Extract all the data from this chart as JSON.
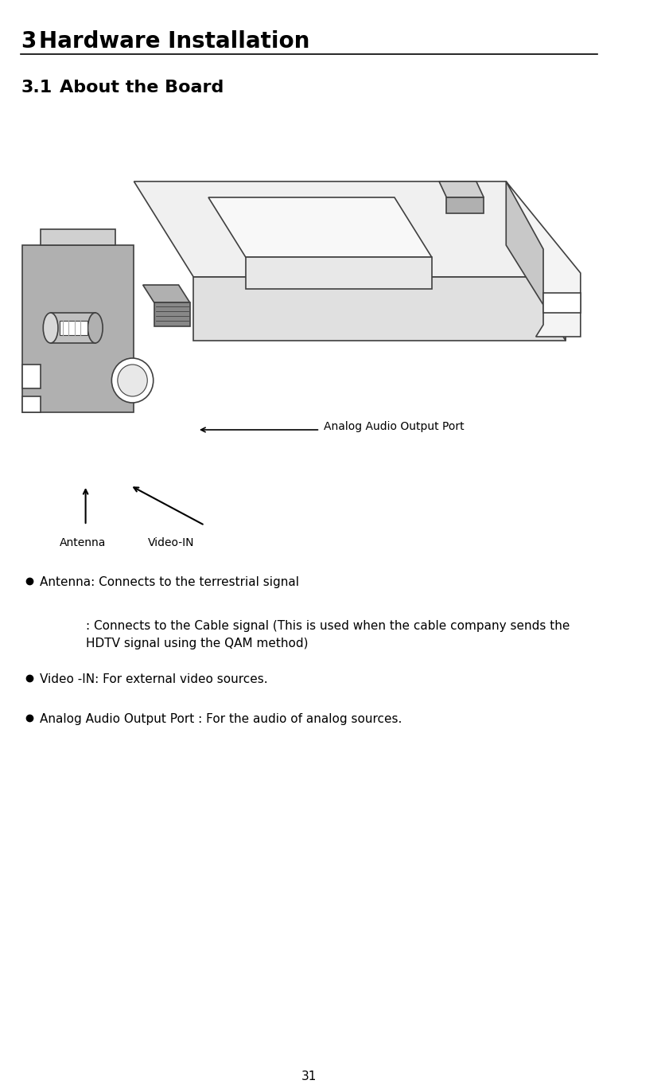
{
  "title_number": "3",
  "title_text": "  Hardware Installation",
  "subtitle_number": "3.1",
  "subtitle_text": "    About the Board",
  "title_fontsize": 20,
  "subtitle_fontsize": 16,
  "body_fontsize": 11,
  "background_color": "#ffffff",
  "text_color": "#000000",
  "page_number": "31",
  "bullet_items": [
    {
      "bullet": true,
      "indent": 0,
      "text": "Antenna: Connects to the terrestrial signal"
    },
    {
      "bullet": false,
      "indent": 1,
      "text": ": Connects to the Cable signal (This is used when the cable company sends the\nHDTV signal using the QAM method)"
    },
    {
      "bullet": true,
      "indent": 0,
      "text": "Video -IN: For external video sources."
    },
    {
      "bullet": true,
      "indent": 0,
      "text": "Analog Audio Output Port : For the audio of analog sources."
    }
  ],
  "label_antenna": "Antenna",
  "label_video_in": "Video-IN",
  "label_audio": "Analog Audio Output Port",
  "diagram_color_light": "#d0d0d0",
  "diagram_color_mid": "#b0b0b0",
  "diagram_color_dark": "#888888",
  "diagram_color_border": "#404040"
}
